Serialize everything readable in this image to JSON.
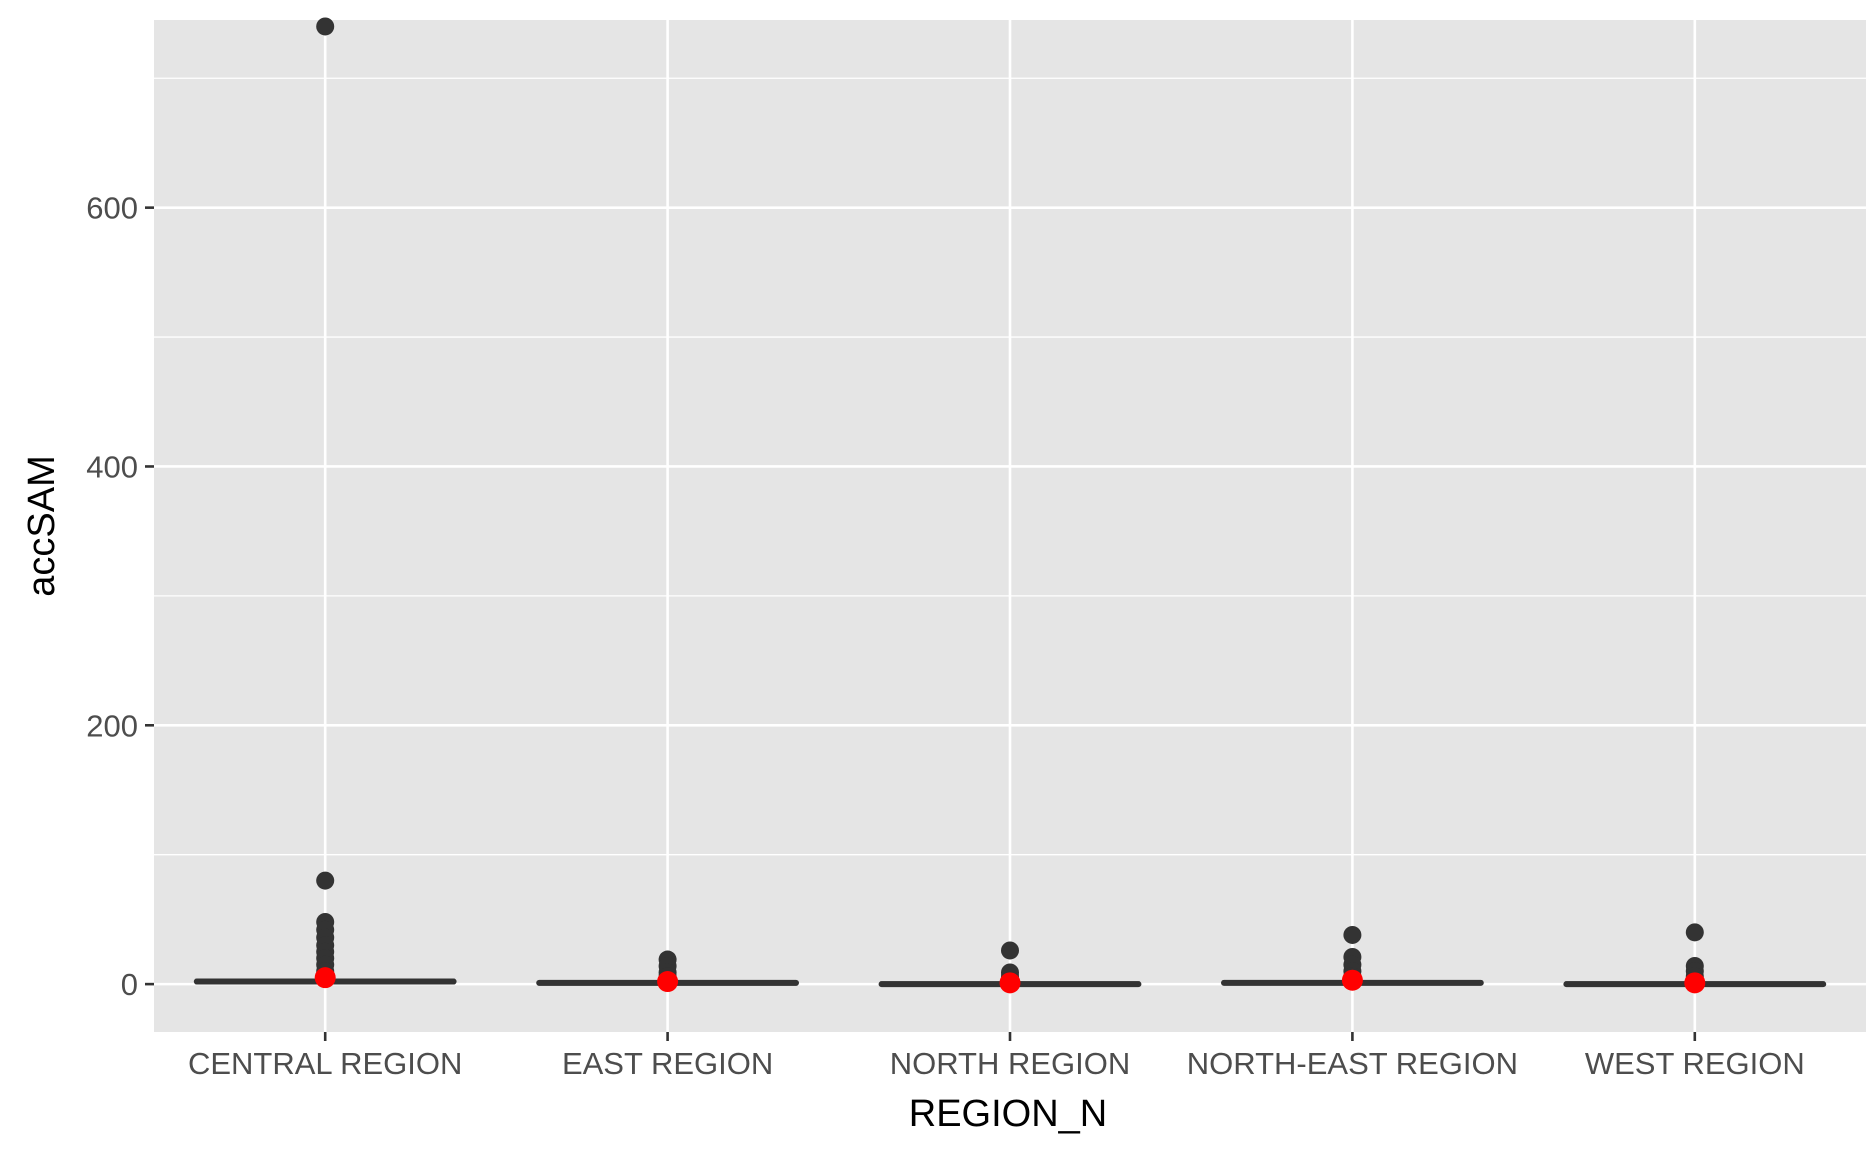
{
  "chart_data": {
    "type": "boxplot",
    "xlabel": "REGION_N",
    "ylabel": "accSAM",
    "categories": [
      "CENTRAL REGION",
      "EAST REGION",
      "NORTH REGION",
      "NORTH-EAST REGION",
      "WEST REGION"
    ],
    "ylim": [
      -37,
      745
    ],
    "yticks": [
      0,
      200,
      400,
      600
    ],
    "grid": true,
    "boxes": [
      {
        "category": "CENTRAL REGION",
        "q1": 1,
        "median": 2,
        "q3": 3,
        "mean": 5,
        "outliers": [
          740,
          80,
          48,
          42,
          36,
          30,
          25,
          20,
          15,
          10
        ]
      },
      {
        "category": "EAST REGION",
        "q1": 0,
        "median": 1,
        "q3": 1,
        "mean": 2,
        "outliers": [
          19,
          14,
          9,
          6
        ]
      },
      {
        "category": "NORTH REGION",
        "q1": 0,
        "median": 0,
        "q3": 1,
        "mean": 1,
        "outliers": [
          26,
          9,
          6
        ]
      },
      {
        "category": "NORTH-EAST REGION",
        "q1": 1,
        "median": 1,
        "q3": 2,
        "mean": 3,
        "outliers": [
          38,
          21,
          15,
          10,
          6
        ]
      },
      {
        "category": "WEST REGION",
        "q1": 0,
        "median": 0,
        "q3": 1,
        "mean": 1,
        "outliers": [
          40,
          14,
          10,
          6
        ]
      }
    ],
    "colors": {
      "panel": "#e5e5e5",
      "grid": "#ffffff",
      "box": "#333333",
      "outlier": "#333333",
      "mean": "#ff0000"
    }
  }
}
